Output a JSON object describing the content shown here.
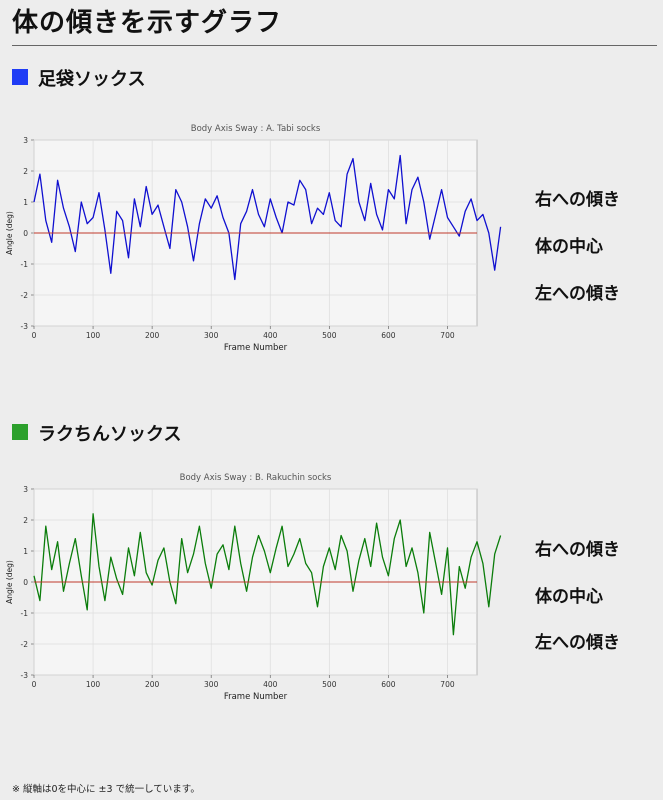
{
  "page_title": "体の傾きを示すグラフ",
  "sections": [
    {
      "heading": "足袋ソックス",
      "swatch_color": "#1f3cf5",
      "side_labels": [
        "右への傾き",
        "体の中心",
        "左への傾き"
      ]
    },
    {
      "heading": "ラクちんソックス",
      "swatch_color": "#2ca02c",
      "side_labels": [
        "右への傾き",
        "体の中心",
        "左への傾き"
      ]
    }
  ],
  "chart_data": [
    {
      "type": "line",
      "title": "Body Axis Sway : A. Tabi socks",
      "xlabel": "Frame Number",
      "ylabel": "Angle (deg)",
      "xlim": [
        0,
        750
      ],
      "ylim": [
        -3,
        3
      ],
      "xticks": [
        "0",
        "100",
        "200",
        "300",
        "400",
        "500",
        "600",
        "700"
      ],
      "yticks": [
        "-3",
        "-2",
        "-1",
        "0",
        "1",
        "2",
        "3"
      ],
      "grid": true,
      "reference_line": {
        "y": 0,
        "color": "#c0392b"
      },
      "series": [
        {
          "color": "#1010d0",
          "x_start": 0,
          "x_step": 10,
          "values": [
            1.0,
            1.9,
            0.4,
            -0.3,
            1.7,
            0.8,
            0.2,
            -0.6,
            1.0,
            0.3,
            0.5,
            1.3,
            0.1,
            -1.3,
            0.7,
            0.4,
            -0.8,
            1.1,
            0.2,
            1.5,
            0.6,
            0.9,
            0.2,
            -0.5,
            1.4,
            1.0,
            0.2,
            -0.9,
            0.3,
            1.1,
            0.8,
            1.2,
            0.5,
            0.0,
            -1.5,
            0.3,
            0.7,
            1.4,
            0.6,
            0.2,
            1.1,
            0.5,
            0.0,
            1.0,
            0.9,
            1.7,
            1.4,
            0.3,
            0.8,
            0.6,
            1.3,
            0.4,
            0.2,
            1.9,
            2.4,
            1.0,
            0.4,
            1.6,
            0.6,
            0.1,
            1.4,
            1.1,
            2.5,
            0.3,
            1.4,
            1.8,
            1.0,
            -0.2,
            0.6,
            1.4,
            0.5,
            0.2,
            -0.1,
            0.7,
            1.1,
            0.4,
            0.6,
            0.0,
            -1.2,
            0.2
          ]
        }
      ]
    },
    {
      "type": "line",
      "title": "Body Axis Sway : B. Rakuchin socks",
      "xlabel": "Frame Number",
      "ylabel": "Angle (deg)",
      "xlim": [
        0,
        750
      ],
      "ylim": [
        -3,
        3
      ],
      "xticks": [
        "0",
        "100",
        "200",
        "300",
        "400",
        "500",
        "600",
        "700"
      ],
      "yticks": [
        "-3",
        "-2",
        "-1",
        "0",
        "1",
        "2",
        "3"
      ],
      "grid": true,
      "reference_line": {
        "y": 0,
        "color": "#c0392b"
      },
      "series": [
        {
          "color": "#0b7d0b",
          "x_start": 0,
          "x_step": 10,
          "values": [
            0.2,
            -0.6,
            1.8,
            0.4,
            1.3,
            -0.3,
            0.6,
            1.4,
            0.2,
            -0.9,
            2.2,
            0.5,
            -0.6,
            0.8,
            0.1,
            -0.4,
            1.1,
            0.2,
            1.6,
            0.3,
            -0.1,
            0.7,
            1.1,
            0.0,
            -0.7,
            1.4,
            0.3,
            0.9,
            1.8,
            0.6,
            -0.2,
            0.9,
            1.2,
            0.4,
            1.8,
            0.6,
            -0.3,
            0.8,
            1.5,
            1.0,
            0.3,
            1.1,
            1.8,
            0.5,
            0.9,
            1.4,
            0.6,
            0.3,
            -0.8,
            0.5,
            1.1,
            0.4,
            1.5,
            1.0,
            -0.3,
            0.7,
            1.4,
            0.5,
            1.9,
            0.8,
            0.2,
            1.4,
            2.0,
            0.5,
            1.1,
            0.3,
            -1.0,
            1.6,
            0.6,
            -0.4,
            1.1,
            -1.7,
            0.5,
            -0.2,
            0.8,
            1.3,
            0.6,
            -0.8,
            0.9,
            1.5
          ]
        }
      ]
    }
  ],
  "footnote": "※ 縦軸は0を中心に ±3 で統一しています。"
}
